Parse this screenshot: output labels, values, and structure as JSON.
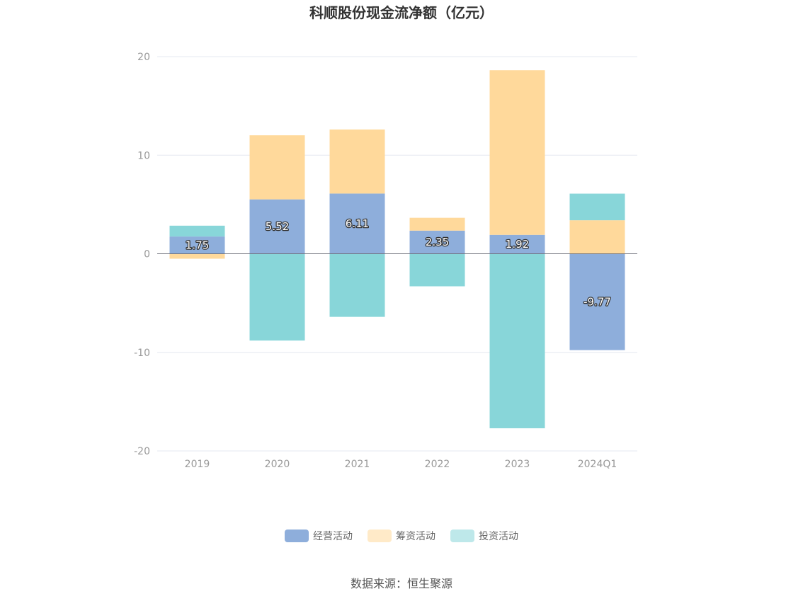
{
  "chart_data": {
    "type": "bar",
    "stacked": true,
    "title": "科顺股份现金流净额（亿元）",
    "categories": [
      "2019",
      "2020",
      "2021",
      "2022",
      "2023",
      "2024Q1"
    ],
    "ylim": [
      -20,
      20
    ],
    "yticks": [
      -20,
      -10,
      0,
      10,
      20
    ],
    "grid": true,
    "legend_position": "bottom",
    "series": [
      {
        "name": "经营活动",
        "color": "#8eaedb",
        "values": [
          1.75,
          5.52,
          6.11,
          2.35,
          1.92,
          -9.77
        ]
      },
      {
        "name": "筹资活动",
        "color": "#ffd99b",
        "values": [
          -0.5,
          6.5,
          6.5,
          1.3,
          16.7,
          3.4
        ]
      },
      {
        "name": "投资活动",
        "color": "#88d6d9",
        "values": [
          1.1,
          -8.8,
          -6.4,
          -3.3,
          -17.7,
          2.7
        ]
      }
    ],
    "data_labels": [
      "1.75",
      "5.52",
      "6.11",
      "2.35",
      "1.92",
      "-9.77"
    ]
  },
  "source_text": "数据来源：恒生聚源"
}
